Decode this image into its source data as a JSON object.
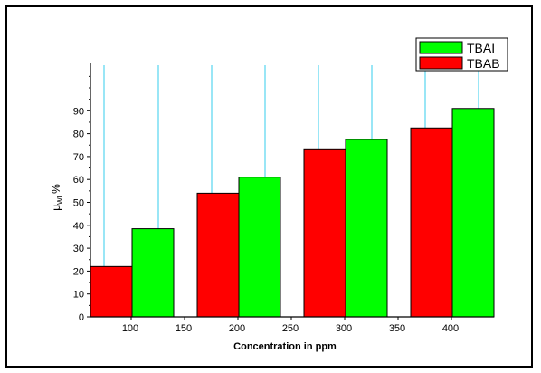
{
  "chart_data": {
    "type": "bar",
    "title": "",
    "xlabel": "Concentration in ppm",
    "ylabel": {
      "main": "μ",
      "sub": "WL",
      "unit": "%"
    },
    "categories": [
      "100",
      "200",
      "300",
      "400"
    ],
    "x_ticks": [
      "100",
      "150",
      "200",
      "250",
      "300",
      "350",
      "400"
    ],
    "y_ticks": [
      "0",
      "10",
      "20",
      "30",
      "40",
      "50",
      "60",
      "70",
      "80",
      "90"
    ],
    "ylim": [
      0,
      100
    ],
    "grid": "vertical lines",
    "legend_position": "top-right",
    "series": [
      {
        "name": "TBAB",
        "color": "#ff0000",
        "values": [
          22,
          54,
          73,
          82.5
        ]
      },
      {
        "name": "TBAI",
        "color": "#00ff00",
        "values": [
          38.5,
          61,
          77.5,
          91
        ]
      }
    ],
    "legend_order": [
      "TBAI",
      "TBAB"
    ]
  }
}
